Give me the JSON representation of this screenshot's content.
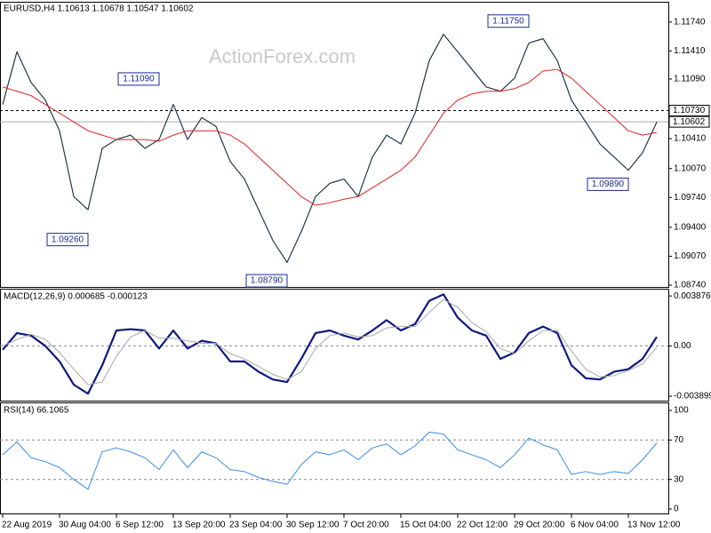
{
  "chart_data": [
    {
      "type": "line",
      "title": "EURUSD,H4  1.10613 1.10678 1.10547 1.10602",
      "watermark": "ActionForex.com",
      "ylim": [
        1.0872,
        1.1196
      ],
      "yticks": [
        {
          "value": 1.0874,
          "label": "1.08740"
        },
        {
          "value": 1.0907,
          "label": "1.09070"
        },
        {
          "value": 1.094,
          "label": "1.09400"
        },
        {
          "value": 1.0974,
          "label": "1.09740"
        },
        {
          "value": 1.1007,
          "label": "1.10070"
        },
        {
          "value": 1.1041,
          "label": "1.10410"
        },
        {
          "value": 1.1109,
          "label": "1.11090"
        },
        {
          "value": 1.1141,
          "label": "1.11410"
        },
        {
          "value": 1.1174,
          "label": "1.11740"
        }
      ],
      "grid": false,
      "series": [
        {
          "color": "#1f3a4a",
          "width": 1.2,
          "values": [
            1.108,
            1.114,
            1.1105,
            1.1085,
            1.105,
            1.0975,
            1.096,
            1.103,
            1.104,
            1.1045,
            1.103,
            1.104,
            1.108,
            1.104,
            1.1065,
            1.1055,
            1.1015,
            1.0995,
            1.096,
            1.0925,
            1.09,
            1.0935,
            1.0975,
            1.099,
            1.0995,
            1.0975,
            1.102,
            1.1045,
            1.1035,
            1.107,
            1.113,
            1.116,
            1.114,
            1.112,
            1.11,
            1.1095,
            1.111,
            1.115,
            1.1155,
            1.113,
            1.1085,
            1.106,
            1.1035,
            1.102,
            1.1005,
            1.1025,
            1.106
          ]
        },
        {
          "color": "#e02020",
          "width": 1,
          "values": [
            1.11,
            1.1095,
            1.109,
            1.108,
            1.107,
            1.106,
            1.105,
            1.1045,
            1.104,
            1.104,
            1.104,
            1.1038,
            1.1045,
            1.105,
            1.105,
            1.105,
            1.1045,
            1.1035,
            1.102,
            1.1005,
            1.099,
            1.0975,
            1.0965,
            1.0968,
            1.0972,
            1.0975,
            1.0985,
            1.0995,
            1.1005,
            1.102,
            1.1045,
            1.107,
            1.1085,
            1.1092,
            1.1095,
            1.1095,
            1.1098,
            1.1105,
            1.1118,
            1.112,
            1.111,
            1.1095,
            1.108,
            1.1065,
            1.105,
            1.1045,
            1.1048
          ]
        }
      ],
      "hlines": [
        {
          "value": 1.1073,
          "label": "1.10730",
          "style": "dashed"
        },
        {
          "value": 1.10602,
          "label": "1.10602",
          "style": "solid"
        }
      ],
      "annotations": [
        {
          "index": 37,
          "value": 1.1175,
          "label": "1.11750"
        },
        {
          "index": 11,
          "value": 1.1109,
          "label": "1.11090"
        },
        {
          "index": 6,
          "value": 1.0926,
          "label": "1.09260"
        },
        {
          "index": 20,
          "value": 1.0879,
          "label": "1.08790"
        },
        {
          "index": 44,
          "value": 1.0989,
          "label": "1.09890"
        }
      ]
    },
    {
      "type": "line",
      "title": "MACD(12,26,9) 0.000685 -0.000123",
      "ylim": [
        -0.00424,
        0.0043
      ],
      "yticks": [
        -0.003899,
        {
          "value": 0,
          "label": "0.00"
        },
        0.003876
      ],
      "grid": true,
      "series": [
        {
          "color": "#0c1a80",
          "width": 2.2,
          "values": [
            -0.0003,
            0.001,
            0.0008,
            0,
            -0.0012,
            -0.003,
            -0.0037,
            -0.0015,
            0.0012,
            0.0013,
            0.0012,
            -0.0002,
            0.0012,
            -0.0002,
            0.0004,
            0.0002,
            -0.0012,
            -0.0012,
            -0.002,
            -0.0026,
            -0.0028,
            -0.001,
            0.001,
            0.0012,
            0.0008,
            0.0005,
            0.0012,
            0.002,
            0.0012,
            0.0017,
            0.0035,
            0.004,
            0.0022,
            0.0012,
            0.0008,
            -0.001,
            -0.0005,
            0.001,
            0.0015,
            0.001,
            -0.0015,
            -0.0025,
            -0.0026,
            -0.002,
            -0.0018,
            -0.001,
            0.0007
          ]
        },
        {
          "color": "#a8a8a8",
          "width": 1,
          "values": [
            0,
            0.0005,
            0.0009,
            0.0005,
            -0.0005,
            -0.0018,
            -0.003,
            -0.0028,
            -0.0008,
            0.0007,
            0.0012,
            0.0006,
            0.0006,
            0.0004,
            0.0002,
            0.0002,
            -0.0006,
            -0.001,
            -0.0016,
            -0.0022,
            -0.0026,
            -0.002,
            -0.0002,
            0.0008,
            0.001,
            0.0007,
            0.0008,
            0.0014,
            0.0015,
            0.0015,
            0.0026,
            0.0036,
            0.003,
            0.0018,
            0.0011,
            -0.0002,
            -0.0006,
            0.0004,
            0.0012,
            0.0012,
            -0.0004,
            -0.0018,
            -0.0024,
            -0.0023,
            -0.0019,
            -0.0014,
            -0.0001
          ]
        }
      ]
    },
    {
      "type": "line",
      "title": "RSI(14) 66.1065",
      "ylim": [
        0,
        100
      ],
      "yticks": [
        0,
        30,
        70,
        100
      ],
      "grid": true,
      "categories": [
        "22 Aug 2019",
        null,
        null,
        null,
        "30 Aug 04:00",
        null,
        null,
        null,
        "6 Sep 12:00",
        null,
        null,
        null,
        "13 Sep 20:00",
        null,
        null,
        null,
        "23 Sep 04:00",
        null,
        null,
        null,
        "30 Sep 12:00",
        null,
        null,
        null,
        "7 Oct 20:00",
        null,
        null,
        null,
        "15 Oct 04:00",
        null,
        null,
        null,
        "22 Oct 12:00",
        null,
        null,
        null,
        "29 Oct 20:00",
        null,
        null,
        null,
        "6 Nov 04:00",
        null,
        null,
        null,
        "13 Nov 12:00",
        null,
        null
      ],
      "series": [
        {
          "color": "#3a8ee6",
          "width": 1,
          "values": [
            55,
            68,
            52,
            48,
            42,
            30,
            20,
            58,
            62,
            58,
            52,
            40,
            60,
            42,
            58,
            52,
            40,
            38,
            32,
            28,
            25,
            45,
            58,
            55,
            60,
            50,
            62,
            66,
            55,
            64,
            78,
            76,
            60,
            55,
            50,
            42,
            55,
            72,
            65,
            60,
            35,
            38,
            35,
            38,
            36,
            50,
            67
          ]
        }
      ]
    }
  ]
}
